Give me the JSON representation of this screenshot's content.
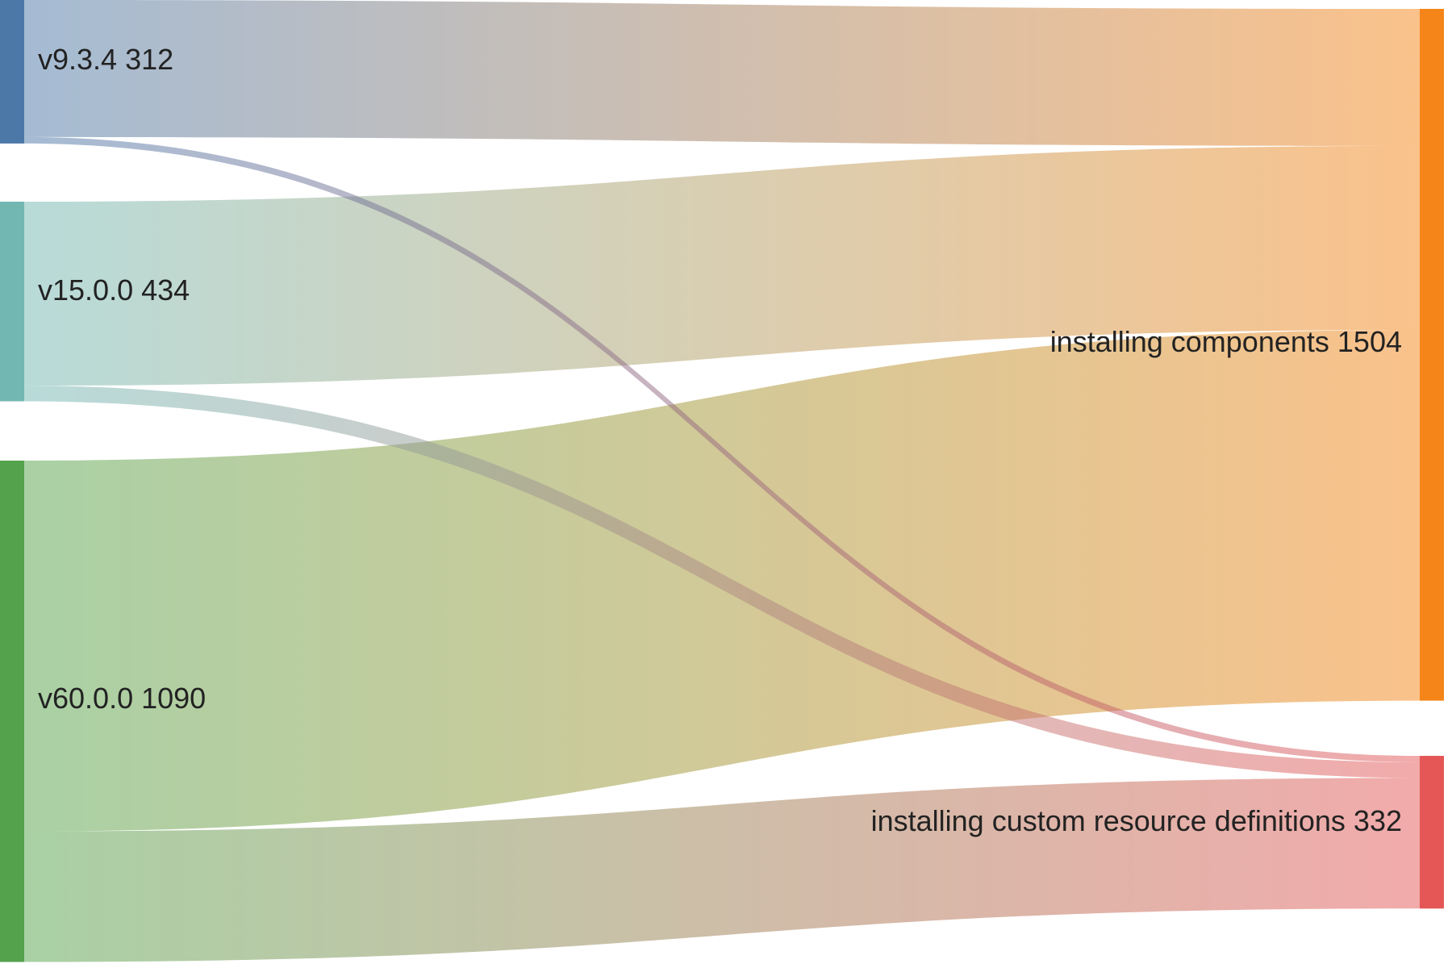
{
  "nodes": {
    "v934": {
      "name": "v9.3.4",
      "value": 312,
      "color": "#4c78a8"
    },
    "v1500": {
      "name": "v15.0.0",
      "value": 434,
      "color": "#72b7b2"
    },
    "v6000": {
      "name": "v60.0.0",
      "value": 1090,
      "color": "#54a24b"
    },
    "components": {
      "name": "installing components",
      "value": 1504,
      "color": "#f58518"
    },
    "crds": {
      "name": "installing custom resource definitions",
      "value": 332,
      "color": "#e45756"
    }
  },
  "links": [
    {
      "source": "v934",
      "target": "components",
      "value": 298
    },
    {
      "source": "v934",
      "target": "crds",
      "value": 14
    },
    {
      "source": "v1500",
      "target": "components",
      "value": 400
    },
    {
      "source": "v1500",
      "target": "crds",
      "value": 34
    },
    {
      "source": "v6000",
      "target": "components",
      "value": 806
    },
    {
      "source": "v6000",
      "target": "crds",
      "value": 284
    }
  ]
}
